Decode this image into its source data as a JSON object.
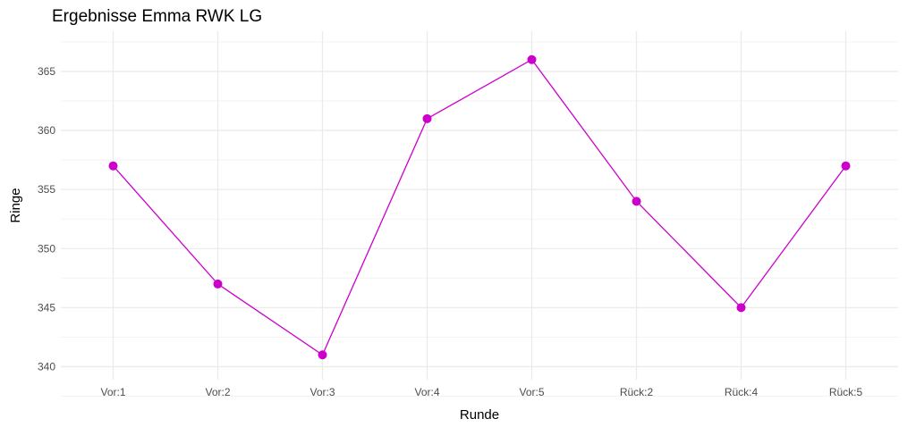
{
  "chart_data": {
    "type": "line",
    "title": "Ergebnisse Emma RWK LG",
    "xlabel": "Runde",
    "ylabel": "Ringe",
    "categories": [
      "Vor:1",
      "Vor:2",
      "Vor:3",
      "Vor:4",
      "Vor:5",
      "Rück:2",
      "Rück:4",
      "Rück:5"
    ],
    "values": [
      357,
      347,
      341,
      361,
      366,
      354,
      345,
      357
    ],
    "ylim": [
      338.9,
      368.4
    ],
    "yticks": [
      340,
      345,
      350,
      355,
      360,
      365
    ],
    "grid": true,
    "legend": "none",
    "color": "#CC00CC"
  }
}
